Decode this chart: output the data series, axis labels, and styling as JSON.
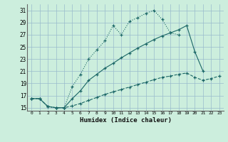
{
  "xlabel": "Humidex (Indice chaleur)",
  "bg_color": "#cceedd",
  "grid_color": "#99bbcc",
  "line_color": "#1a6666",
  "xlim": [
    -0.5,
    23.5
  ],
  "ylim": [
    14.5,
    32
  ],
  "xticks": [
    0,
    1,
    2,
    3,
    4,
    5,
    6,
    7,
    8,
    9,
    10,
    11,
    12,
    13,
    14,
    15,
    16,
    17,
    18,
    19,
    20,
    21,
    22,
    23
  ],
  "yticks": [
    15,
    17,
    19,
    21,
    23,
    25,
    27,
    29,
    31
  ],
  "line1_x": [
    0,
    1,
    2,
    3,
    4,
    5,
    6,
    7,
    8,
    9,
    10,
    11,
    12,
    13,
    14,
    15,
    16,
    17,
    18
  ],
  "line1_y": [
    16.5,
    16.5,
    15.2,
    15.0,
    15.0,
    18.5,
    20.5,
    23.0,
    24.5,
    26.0,
    28.5,
    27.0,
    29.2,
    29.8,
    30.5,
    31.0,
    29.5,
    27.3,
    27.0
  ],
  "line2_x": [
    0,
    1,
    2,
    3,
    4,
    5,
    6,
    7,
    8,
    9,
    10,
    11,
    12,
    13,
    14,
    15,
    16,
    17,
    18,
    19,
    20,
    21
  ],
  "line2_y": [
    16.5,
    16.5,
    15.2,
    15.0,
    15.0,
    16.5,
    17.8,
    19.5,
    20.5,
    21.5,
    22.3,
    23.2,
    24.0,
    24.8,
    25.5,
    26.2,
    26.8,
    27.3,
    27.8,
    28.5,
    24.2,
    21.0
  ],
  "line3_x": [
    0,
    1,
    2,
    3,
    4,
    5,
    6,
    7,
    8,
    9,
    10,
    11,
    12,
    13,
    14,
    15,
    16,
    17,
    18,
    19,
    20,
    21,
    22,
    23
  ],
  "line3_y": [
    16.5,
    16.5,
    15.2,
    15.0,
    15.0,
    15.3,
    15.7,
    16.2,
    16.7,
    17.2,
    17.6,
    18.0,
    18.4,
    18.8,
    19.2,
    19.6,
    20.0,
    20.2,
    20.5,
    20.7,
    20.0,
    19.5,
    19.8,
    20.2
  ]
}
